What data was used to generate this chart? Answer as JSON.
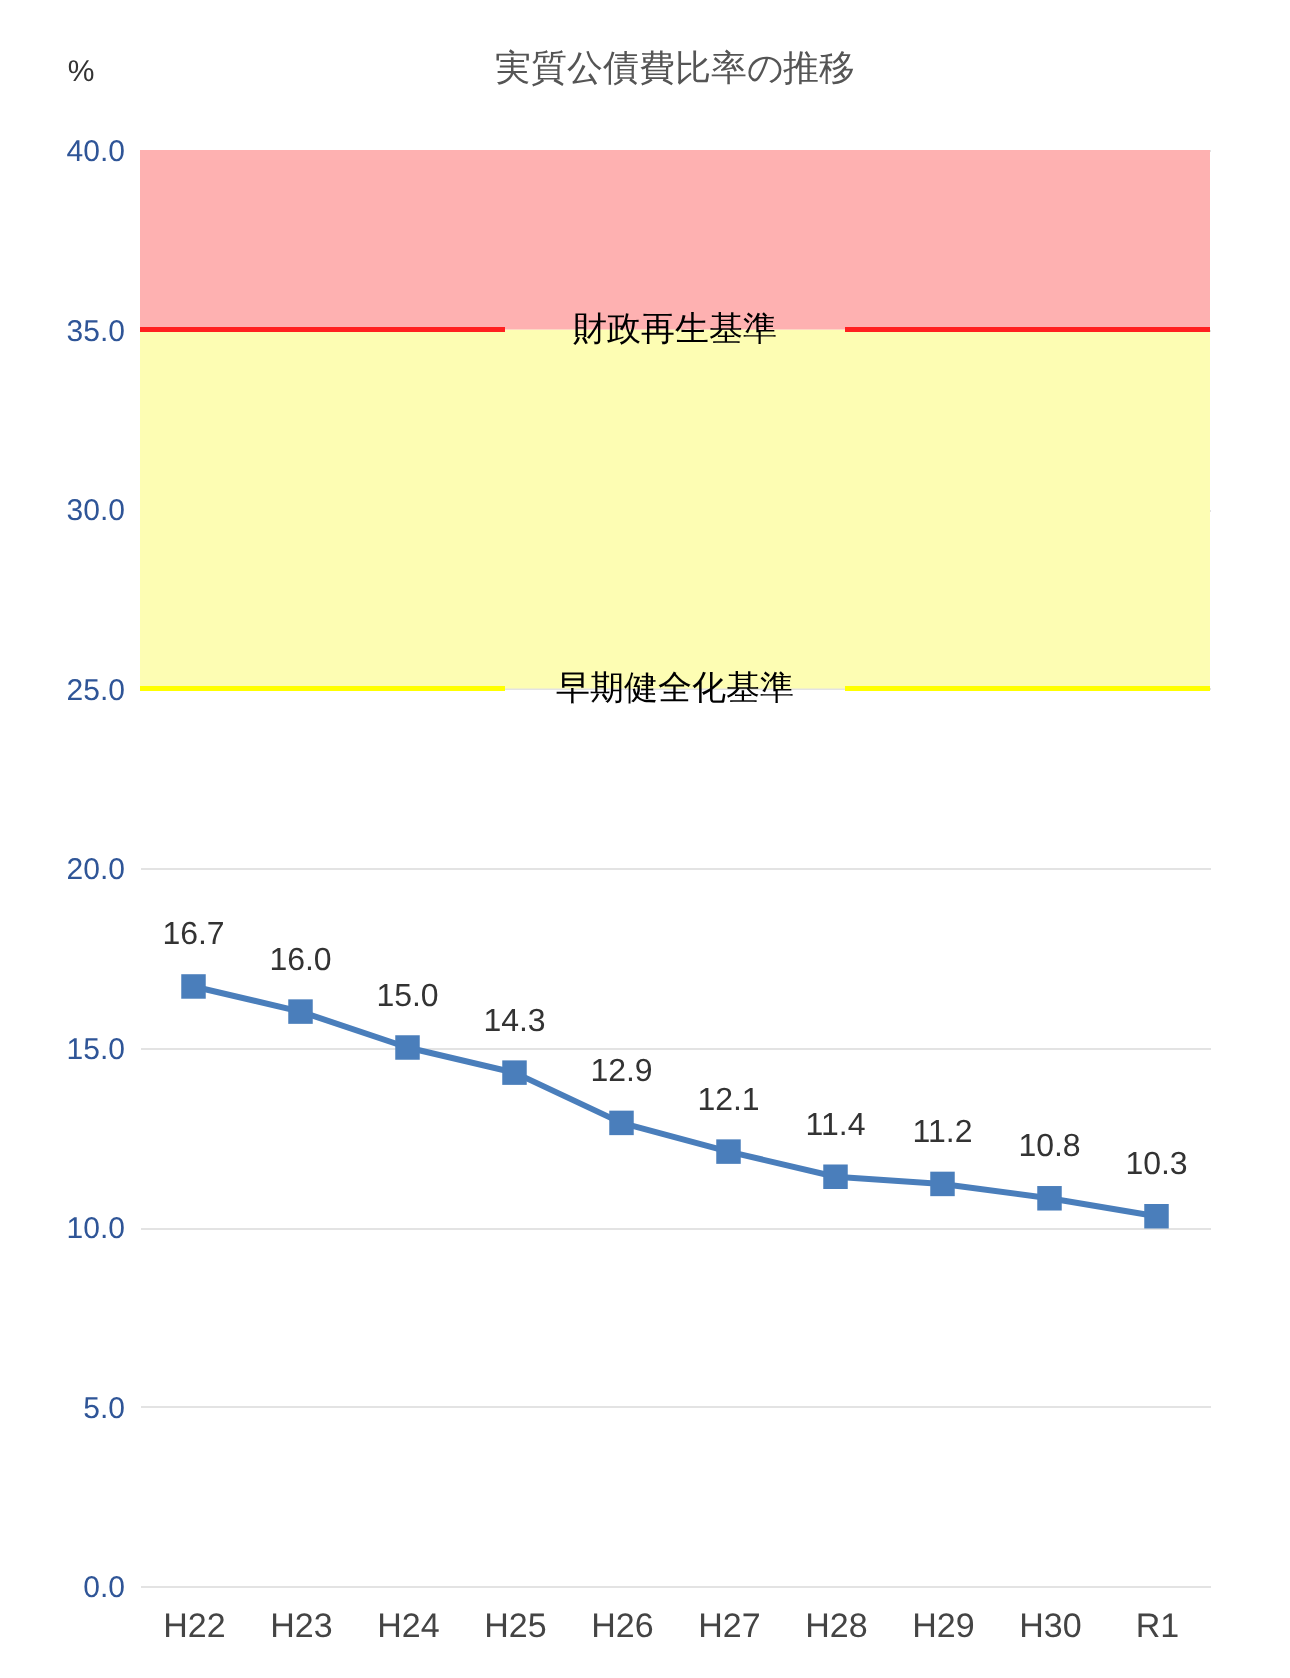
{
  "chart_data": {
    "type": "line",
    "title": "実質公債費比率の推移",
    "ylabel": "%",
    "categories": [
      "H22",
      "H23",
      "H24",
      "H25",
      "H26",
      "H27",
      "H28",
      "H29",
      "H30",
      "R1"
    ],
    "series": [
      {
        "color": "#4a7ebb",
        "values": [
          16.7,
          16.0,
          15.0,
          14.3,
          12.9,
          12.1,
          11.4,
          11.2,
          10.8,
          10.3
        ],
        "value_labels": [
          "16.7",
          "16.0",
          "15.0",
          "14.3",
          "12.9",
          "12.1",
          "11.4",
          "11.2",
          "10.8",
          "10.3"
        ]
      }
    ],
    "ylim": [
      0,
      40
    ],
    "yticks": [
      {
        "value": 0,
        "label": "0.0"
      },
      {
        "value": 5,
        "label": "5.0"
      },
      {
        "value": 10,
        "label": "10.0"
      },
      {
        "value": 15,
        "label": "15.0"
      },
      {
        "value": 20,
        "label": "20.0"
      },
      {
        "value": 25,
        "label": "25.0"
      },
      {
        "value": 30,
        "label": "30.0"
      },
      {
        "value": 35,
        "label": "35.0"
      },
      {
        "value": 40,
        "label": "40.0"
      }
    ],
    "bands": [
      {
        "axis": "y",
        "from": 25,
        "to": 35,
        "color": "#fdfdb3"
      },
      {
        "axis": "y",
        "from": 35,
        "to": 40,
        "color": "#feb1b1"
      }
    ],
    "ref_lines": [
      {
        "axis": "y",
        "value": 35,
        "label": "財政再生基準",
        "color": "#ff2020"
      },
      {
        "axis": "y",
        "value": 25,
        "label": "早期健全化基準",
        "color": "#ffff00"
      }
    ],
    "grid": "y",
    "marker": "square"
  }
}
